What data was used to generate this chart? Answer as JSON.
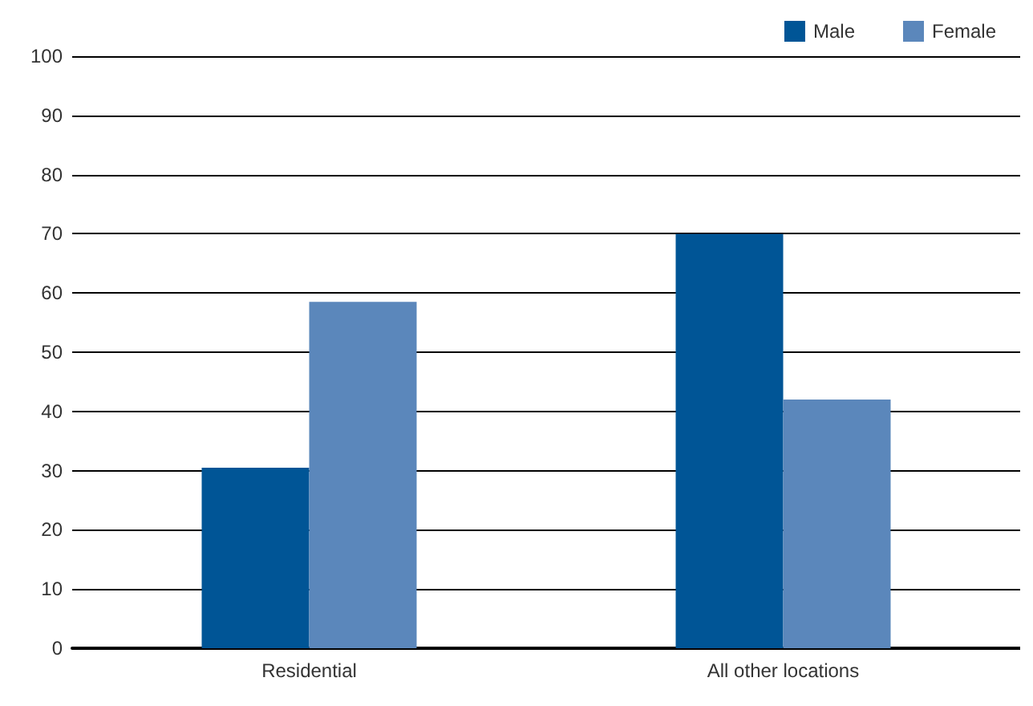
{
  "chart_data": {
    "type": "bar",
    "categories": [
      "Residential",
      "All other locations"
    ],
    "series": [
      {
        "name": "Male",
        "color": "#005596",
        "values": [
          30.5,
          70
        ]
      },
      {
        "name": "Female",
        "color": "#5b87bb",
        "values": [
          58.5,
          42
        ]
      }
    ],
    "ylim": [
      0,
      100
    ],
    "yticks": [
      0,
      10,
      20,
      30,
      40,
      50,
      60,
      70,
      80,
      90,
      100
    ],
    "grid": "y",
    "legend": "top right"
  }
}
